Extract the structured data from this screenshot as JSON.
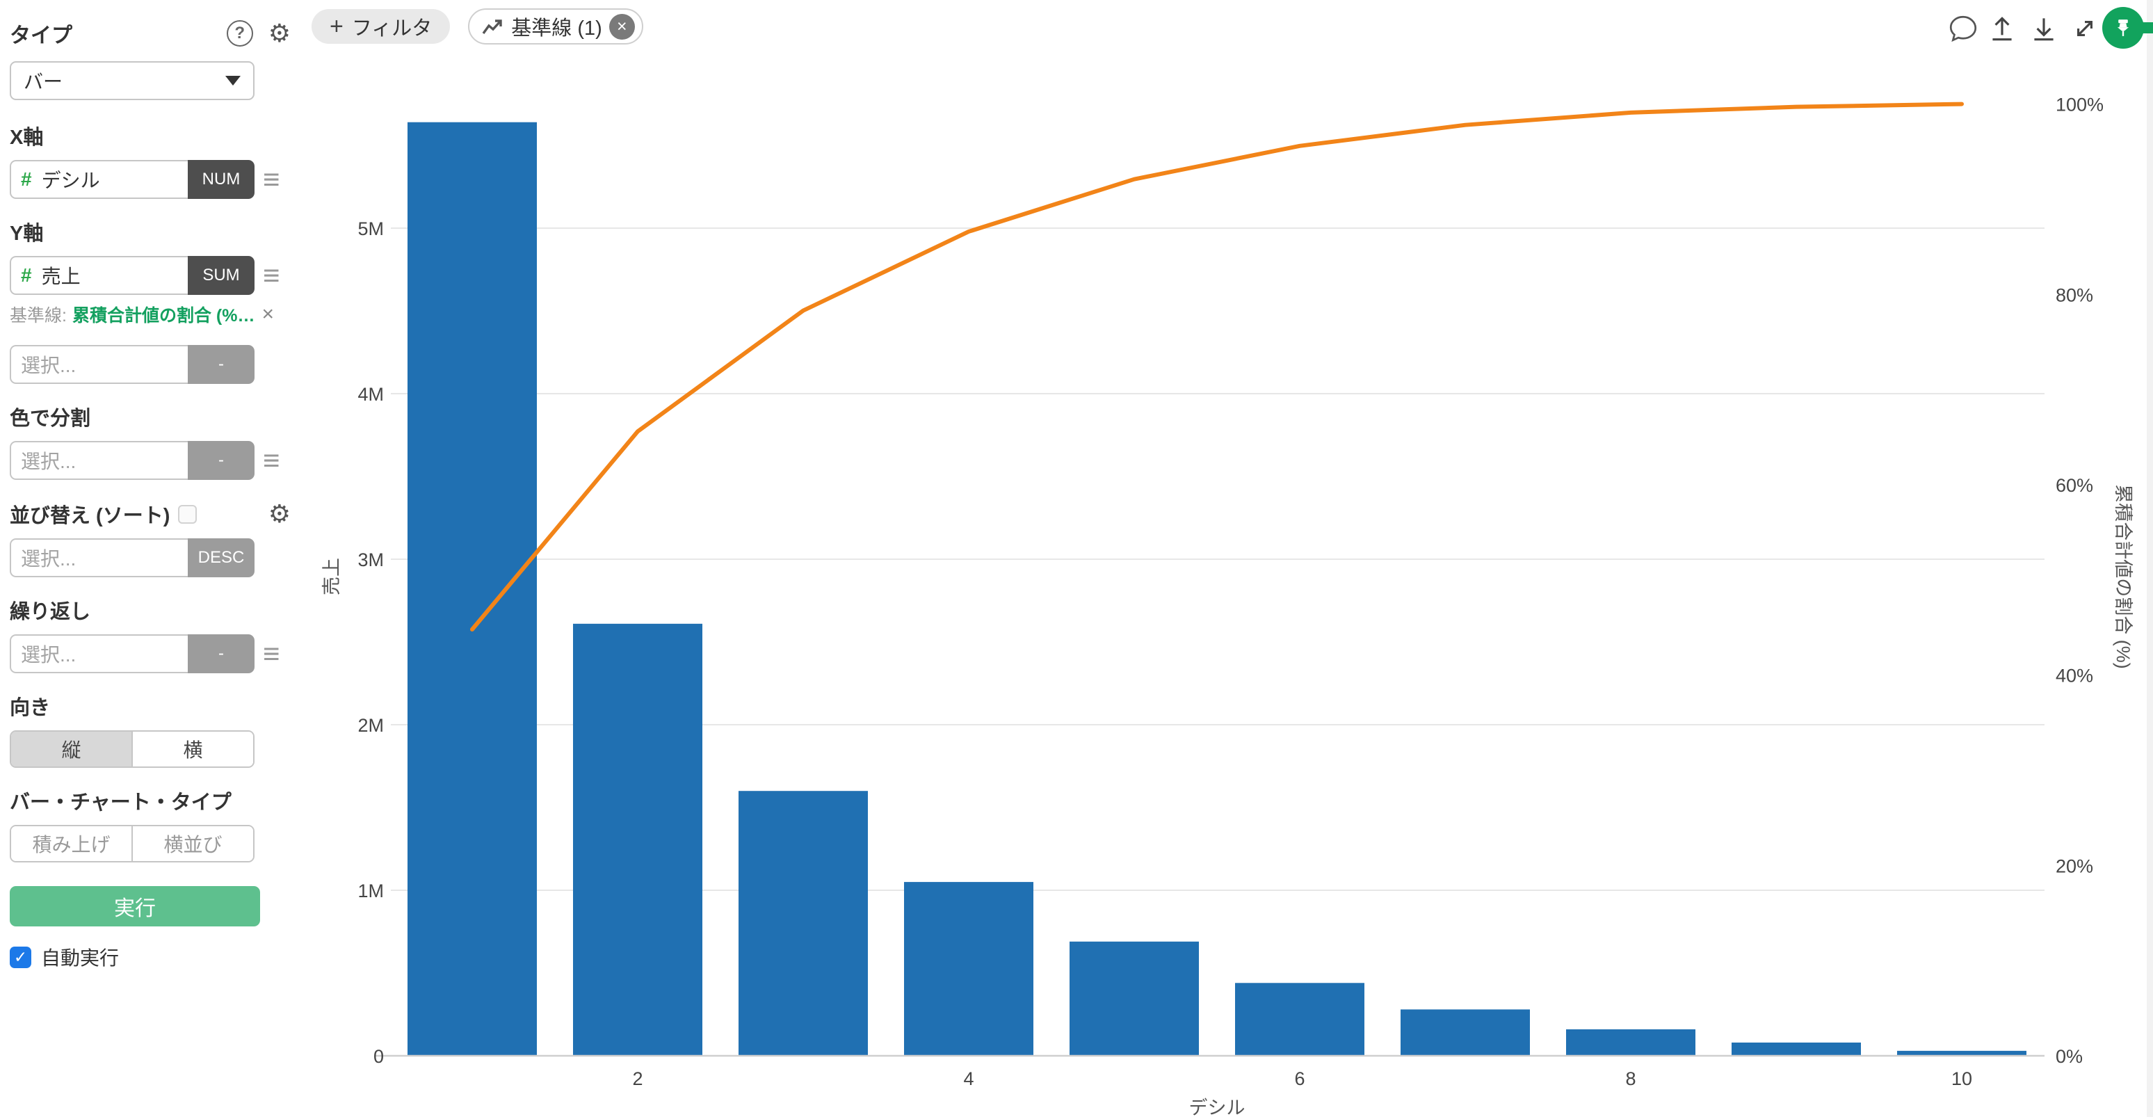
{
  "icons": {
    "question": "?",
    "gear": "⚙",
    "menu": "≡",
    "plus": "+",
    "close": "×",
    "check": "✓"
  },
  "colors": {
    "bar": "#2070b2",
    "line": "#f28418",
    "run_button": "#5ec08e",
    "pin_green": "#12a35d",
    "checkbox_blue": "#1c79e8",
    "baseline_link_green": "#13a05f",
    "badge_dark": "#4e4e4e",
    "badge_gray": "#9c9c9c"
  },
  "sidebar": {
    "type_label": "タイプ",
    "type_value": "バー",
    "x_axis": {
      "label": "X軸",
      "field": "デシル",
      "badge": "NUM"
    },
    "y_axis": {
      "label": "Y軸",
      "field": "売上",
      "badge": "SUM",
      "baseline_prefix": "基準線:",
      "baseline_link": "累積合計値の割合 (%) (...",
      "extra_placeholder": "選択...",
      "extra_badge": "-"
    },
    "color_split": {
      "label": "色で分割",
      "placeholder": "選択...",
      "badge": "-"
    },
    "sort": {
      "label": "並び替え (ソート)",
      "placeholder": "選択...",
      "badge": "DESC"
    },
    "repeat": {
      "label": "繰り返し",
      "placeholder": "選択...",
      "badge": "-"
    },
    "orientation": {
      "label": "向き",
      "vertical": "縦",
      "horizontal": "横"
    },
    "bar_type": {
      "label": "バー・チャート・タイプ",
      "stacked": "積み上げ",
      "side_by_side": "横並び"
    },
    "run_button": "実行",
    "auto_run": "自動実行"
  },
  "topbar": {
    "filter_label": "フィルタ",
    "baseline_chip": "基準線 (1)"
  },
  "chart_data": {
    "type": "bar",
    "subtype": "pareto (bar + cumulative line)",
    "categories": [
      1,
      2,
      3,
      4,
      5,
      6,
      7,
      8,
      9,
      10
    ],
    "series": [
      {
        "name": "売上 (SUM)",
        "type": "bar",
        "axis": "left",
        "values": [
          5640000,
          2610000,
          1600000,
          1050000,
          690000,
          440000,
          280000,
          160000,
          80000,
          30000
        ]
      },
      {
        "name": "累積合計値の割合 (%)",
        "type": "line",
        "axis": "right",
        "values": [
          44.8,
          65.6,
          78.3,
          86.6,
          92.1,
          95.6,
          97.8,
          99.1,
          99.7,
          100
        ]
      }
    ],
    "title": "",
    "xlabel": "デシル",
    "ylabel_left": "売上",
    "ylabel_right": "累積合計値の割合 (%)",
    "x_ticks": [
      2,
      4,
      6,
      8,
      10
    ],
    "y_left_tick_labels": [
      "0",
      "1M",
      "2M",
      "3M",
      "4M",
      "5M"
    ],
    "y_left_tick_values": [
      0,
      1000000,
      2000000,
      3000000,
      4000000,
      5000000
    ],
    "y_right_tick_labels": [
      "0%",
      "20%",
      "40%",
      "60%",
      "80%",
      "100%"
    ],
    "y_right_tick_values": [
      0,
      20,
      40,
      60,
      80,
      100
    ],
    "ylim_left": [
      0,
      5790000
    ],
    "ylim_right": [
      0,
      100.7
    ],
    "grid": true,
    "legend": "none",
    "bar_color": "#2070b2",
    "line_color": "#f28418"
  }
}
